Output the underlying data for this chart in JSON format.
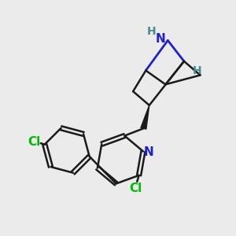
{
  "background_color": "#ebebeb",
  "bond_color": "#1a1a1a",
  "n_color": "#2020cc",
  "n_bridge_color": "#2020cc",
  "cl_color": "#00bb00",
  "h_color": "#4a8a8a",
  "line_width": 1.8,
  "figsize": [
    3.0,
    3.0
  ],
  "dpi": 100,
  "xlim": [
    0,
    10
  ],
  "ylim": [
    0,
    10
  ]
}
